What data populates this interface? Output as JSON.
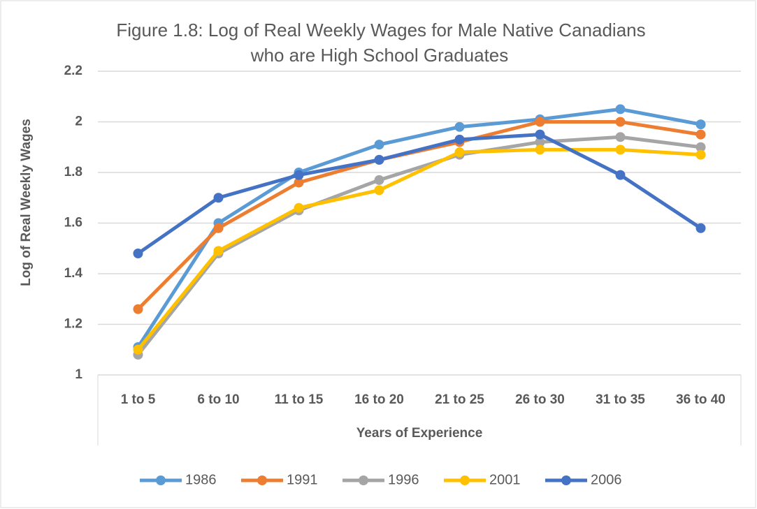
{
  "chart_data": {
    "type": "line",
    "title": [
      "Figure 1.8: Log of Real Weekly Wages for Male Native Canadians",
      "who are High School Graduates"
    ],
    "x_label": "Years of Experience",
    "y_label": "Log of Real Weekly Wages",
    "categories": [
      "1 to 5",
      "6 to 10",
      "11 to 15",
      "16 to 20",
      "21 to 25",
      "26 to 30",
      "31 to 35",
      "36 to 40"
    ],
    "series": [
      {
        "name": "1986",
        "color": "#5b9bd5",
        "values": [
          1.11,
          1.6,
          1.8,
          1.91,
          1.98,
          2.01,
          2.05,
          1.99
        ]
      },
      {
        "name": "1991",
        "color": "#ed7d31",
        "values": [
          1.26,
          1.58,
          1.76,
          1.85,
          1.92,
          2.0,
          2.0,
          1.95
        ]
      },
      {
        "name": "1996",
        "color": "#a5a5a5",
        "values": [
          1.08,
          1.48,
          1.65,
          1.77,
          1.87,
          1.92,
          1.94,
          1.9
        ]
      },
      {
        "name": "2001",
        "color": "#ffc000",
        "values": [
          1.1,
          1.49,
          1.66,
          1.73,
          1.88,
          1.89,
          1.89,
          1.87
        ]
      },
      {
        "name": "2006",
        "color": "#4472c4",
        "values": [
          1.48,
          1.7,
          1.79,
          1.85,
          1.93,
          1.95,
          1.79,
          1.58
        ]
      }
    ],
    "ylim": [
      1,
      2.2
    ],
    "yticks": [
      1,
      1.2,
      1.4,
      1.6,
      1.8,
      2,
      2.2
    ],
    "grid": true,
    "legend": "bottom"
  }
}
